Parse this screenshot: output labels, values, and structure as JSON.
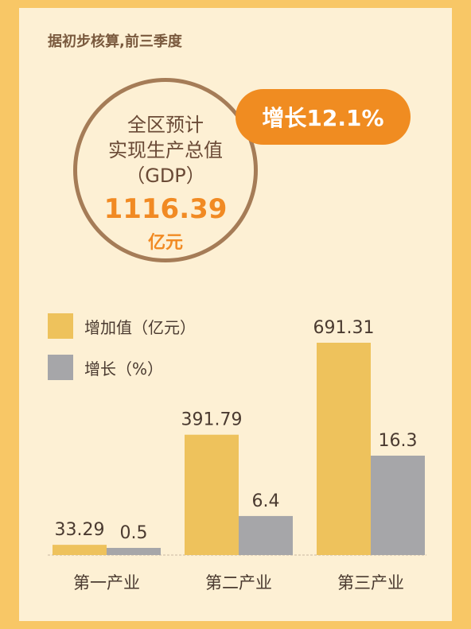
{
  "note": "据初步核算,前三季度",
  "gdp": {
    "line1": "全区预计",
    "line2": "实现生产总值",
    "line3": "（GDP）",
    "value": "1116.39",
    "unit": "亿元",
    "growth": "增长12.1%"
  },
  "colors": {
    "value": "#eec25c",
    "growth": "#a6a6a9",
    "accent": "#f08c21"
  },
  "chart_data": {
    "type": "bar",
    "categories": [
      "第一产业",
      "第二产业",
      "第三产业"
    ],
    "series": [
      {
        "name": "增加值（亿元）",
        "values": [
          33.29,
          391.79,
          691.31
        ],
        "labels": [
          "33.29",
          "391.79",
          "691.31"
        ]
      },
      {
        "name": "增长（%）",
        "values": [
          0.5,
          6.4,
          16.3
        ],
        "labels": [
          "0.5",
          "6.4",
          "16.3"
        ]
      }
    ],
    "legend": "top-left"
  }
}
